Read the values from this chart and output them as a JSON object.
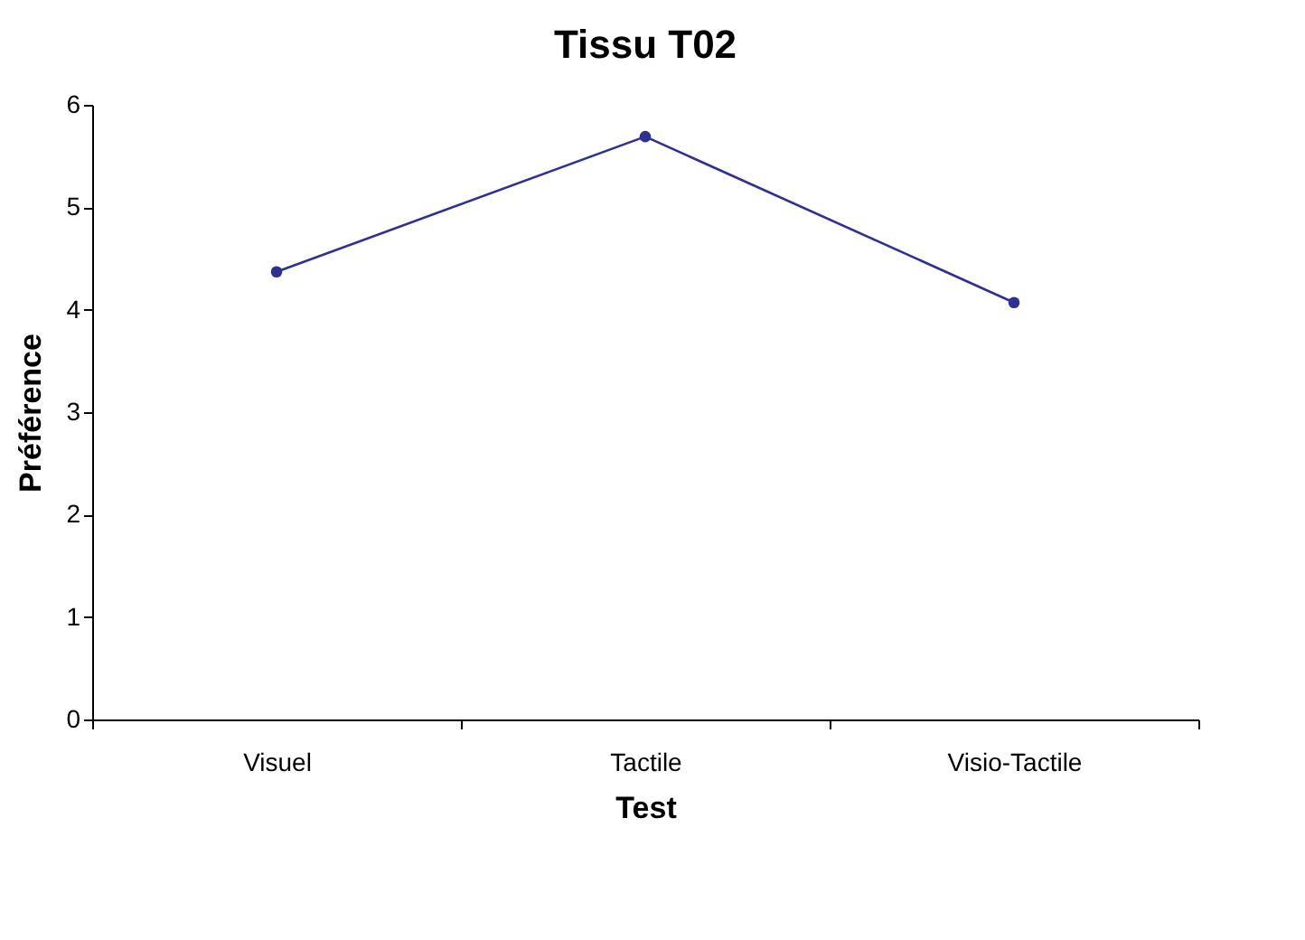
{
  "chart_data": {
    "type": "line",
    "title": "Tissu T02",
    "xlabel": "Test",
    "ylabel": "Préférence",
    "categories": [
      "Visuel",
      "Tactile",
      "Visio-Tactile"
    ],
    "series": [
      {
        "color": "#2e3192",
        "values": [
          4.37,
          5.69,
          4.07
        ]
      }
    ],
    "ylim": [
      0,
      6
    ],
    "yticks": [
      0,
      1,
      2,
      3,
      4,
      5,
      6
    ],
    "grid": false,
    "marker": "circle",
    "line_style": "solid"
  }
}
